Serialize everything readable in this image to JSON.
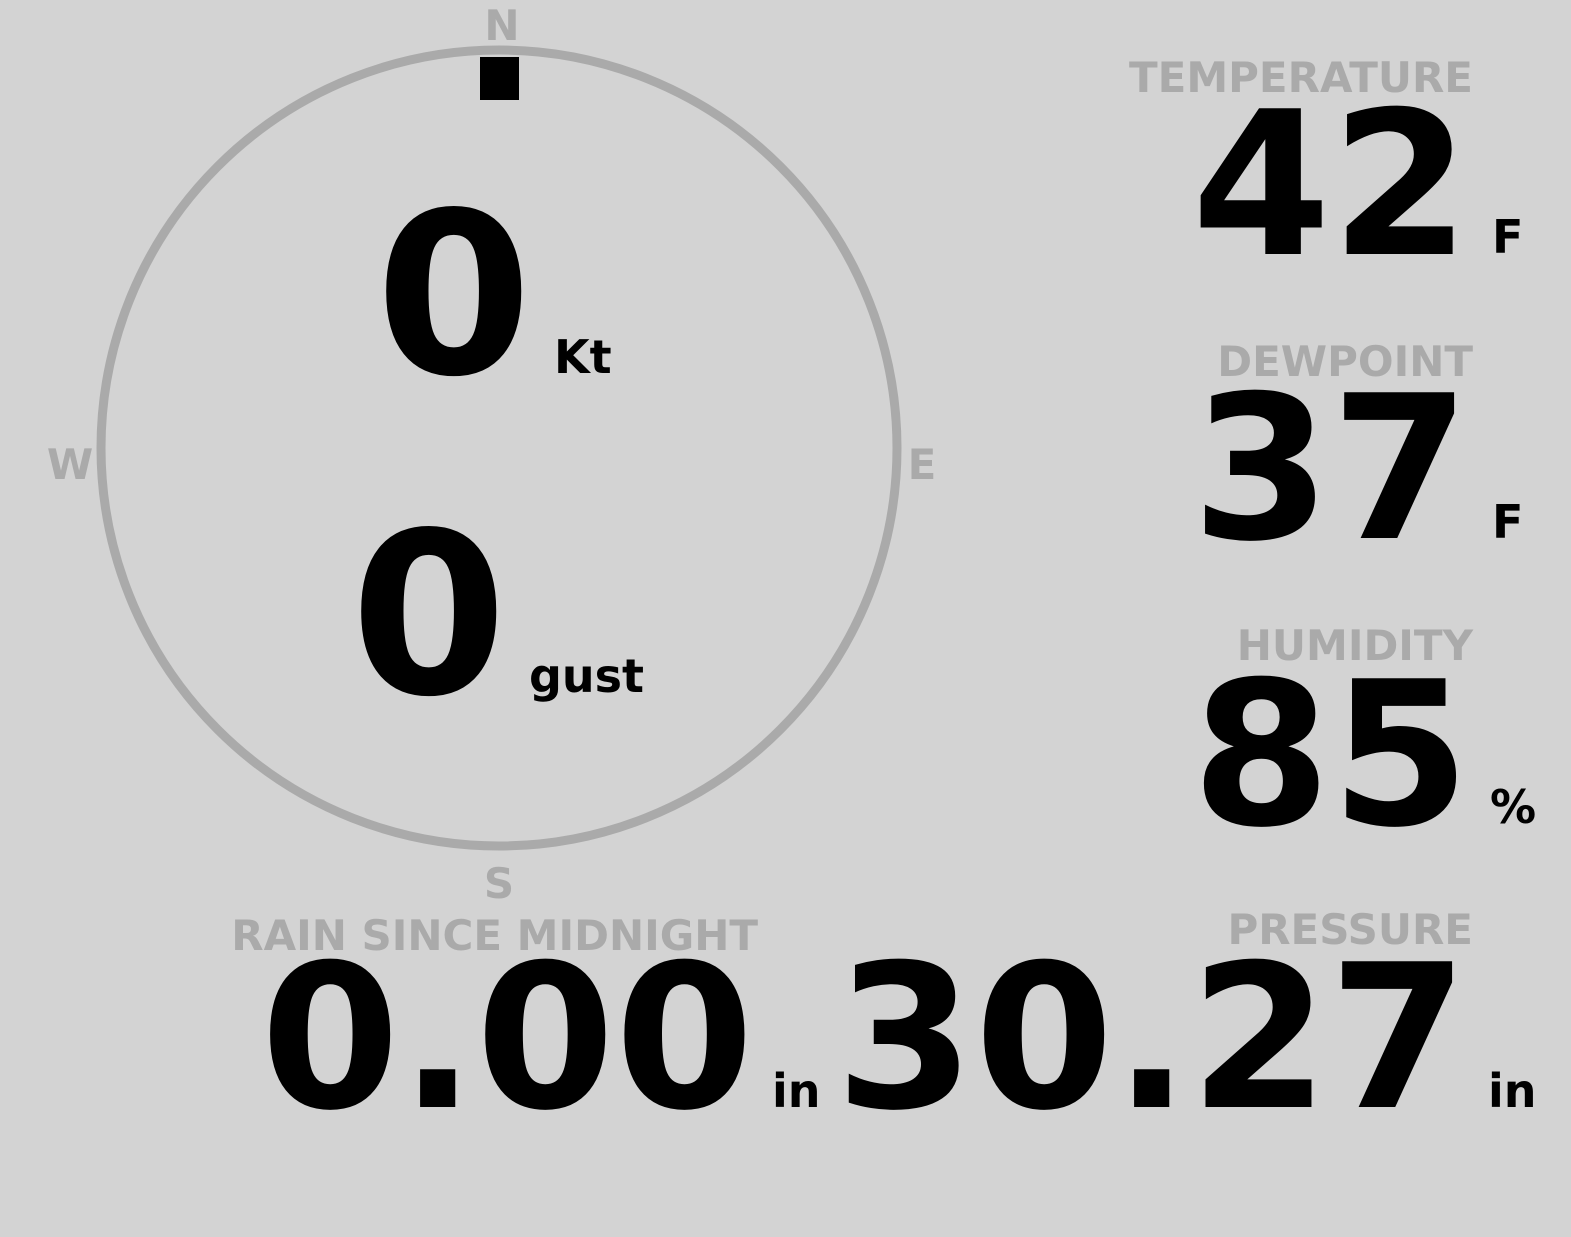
{
  "colors": {
    "background": "#d3d3d3",
    "label": "#aaaaaa",
    "value": "#000000"
  },
  "compass": {
    "north": "N",
    "south": "S",
    "east": "E",
    "west": "W",
    "wind_direction_deg": 0,
    "wind_speed": "0",
    "wind_speed_unit": "Kt",
    "gust": "0",
    "gust_unit": "gust"
  },
  "temperature": {
    "label": "TEMPERATURE",
    "value": "42",
    "unit": "F"
  },
  "dewpoint": {
    "label": "DEWPOINT",
    "value": "37",
    "unit": "F"
  },
  "humidity": {
    "label": "HUMIDITY",
    "value": "85",
    "unit": "%"
  },
  "pressure": {
    "label": "PRESSURE",
    "value": "30.27",
    "unit": "in"
  },
  "rain": {
    "label": "RAIN SINCE MIDNIGHT",
    "value": "0.00",
    "unit": "in"
  }
}
